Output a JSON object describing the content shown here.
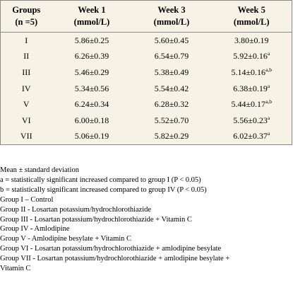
{
  "table": {
    "headers": [
      {
        "line1": "Groups",
        "line2": "(n =5)"
      },
      {
        "line1": "Week 1",
        "line2": "(mmol/L)"
      },
      {
        "line1": "Week 3",
        "line2": "(mmol/L)"
      },
      {
        "line1": "Week 5",
        "line2": "(mmol/L)"
      }
    ],
    "rows": [
      {
        "group": "I",
        "w1": "5.86±0.25",
        "w3": "5.60±0.45",
        "w5": "3.80±0.19",
        "w5_sup": ""
      },
      {
        "group": "II",
        "w1": "6.26±0.39",
        "w3": "6.54±0.79",
        "w5": "5.92±0.16",
        "w5_sup": "a"
      },
      {
        "group": "III",
        "w1": "5.46±0.29",
        "w3": "5.38±0.49",
        "w5": "5.14±0.16",
        "w5_sup": "a,b"
      },
      {
        "group": "IV",
        "w1": "5.34±0.56",
        "w3": "5.54±0.42",
        "w5": "6.38±0.19",
        "w5_sup": "a"
      },
      {
        "group": "V",
        "w1": "6.24±0.34",
        "w3": "6.28±0.32",
        "w5": "5.44±0.17",
        "w5_sup": "a,b"
      },
      {
        "group": "VI",
        "w1": "6.00±0.18",
        "w3": "5.52±0.70",
        "w5": "5.56±0.23",
        "w5_sup": "a"
      },
      {
        "group": "VII",
        "w1": "5.06±0.19",
        "w3": "5.82±0.29",
        "w5": "6.02±0.37",
        "w5_sup": "a"
      }
    ]
  },
  "notes": [
    "Mean ± standard deviation",
    "a = statistically significant increased compared to group I (P < 0.05)",
    "b = statistically significant increased compared to group IV (P < 0.05)",
    "Group I – Control",
    "Group II - Losartan potassium/hydrochlorothiazide",
    "Group III - Losartan potassium/hydrochlorothiazide + Vitamin C",
    "Group IV - Amlodipine",
    "Group V - Amlodipine besylate + Vitamin C",
    "Group VI - Losartan potassium/hydrochlorothiazide + amlodipine besylate",
    "Group VII - Losartan potassium/hydrochlorothiazide + amlodipine besylate +",
    "Vitamin C"
  ]
}
